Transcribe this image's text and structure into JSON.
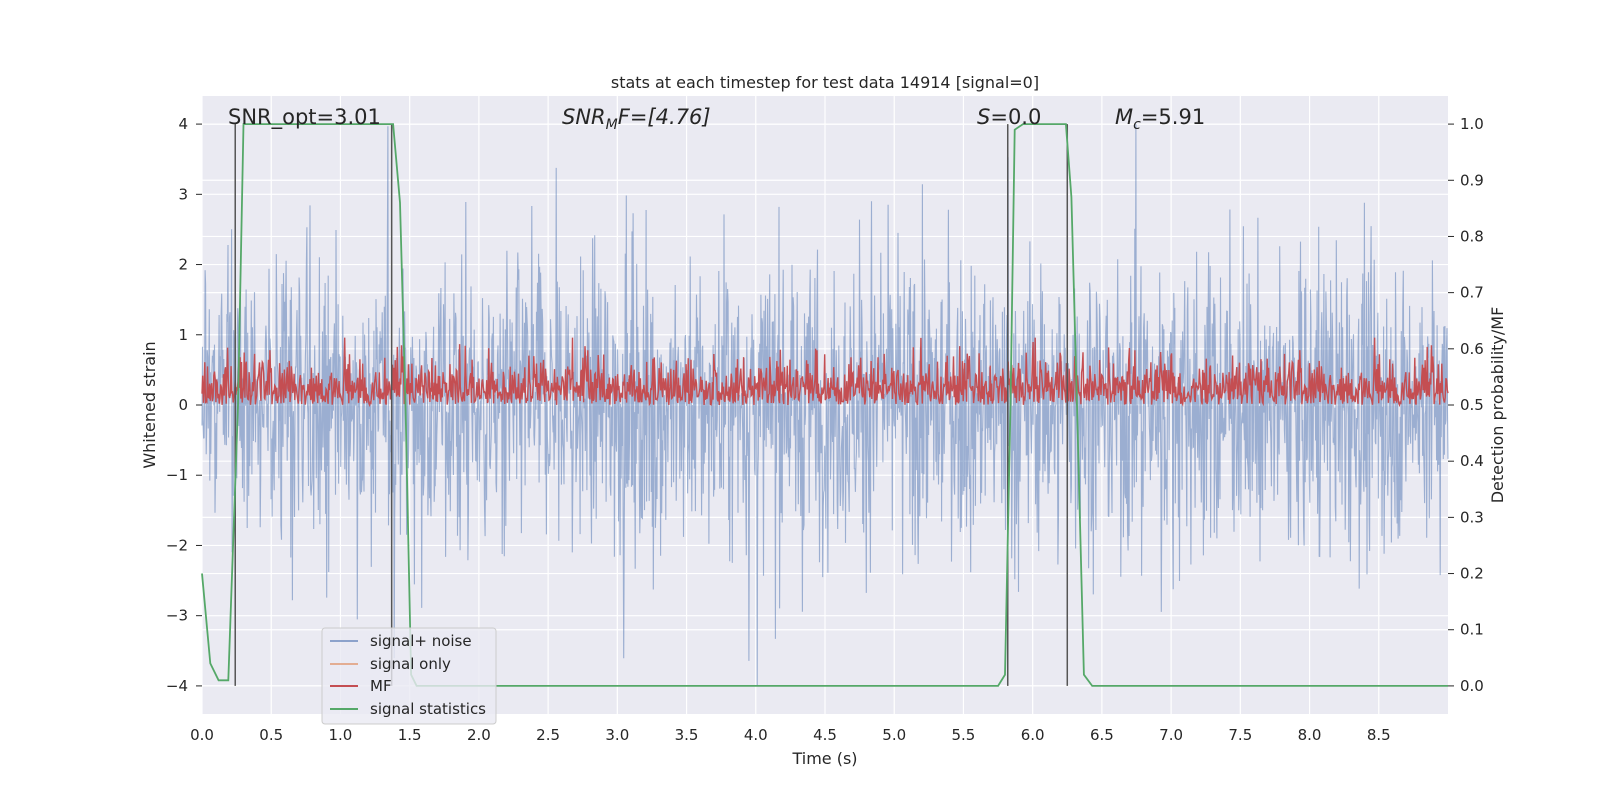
{
  "chart_data": {
    "type": "line",
    "title": "stats at each timestep for test data 14914 [signal=0]",
    "xlabel": "Time (s)",
    "ylabel": "Whitened strain",
    "y2label": "Detection probability/MF",
    "xlim": [
      0.0,
      9.0
    ],
    "ylim": [
      -4.4,
      4.4
    ],
    "y2lim": [
      -0.05,
      1.05
    ],
    "x_ticks": [
      "0.0",
      "0.5",
      "1.0",
      "1.5",
      "2.0",
      "2.5",
      "3.0",
      "3.5",
      "4.0",
      "4.5",
      "5.0",
      "5.5",
      "6.0",
      "6.5",
      "7.0",
      "7.5",
      "8.0",
      "8.5"
    ],
    "y_ticks": [
      "−4",
      "−3",
      "−2",
      "−1",
      "0",
      "1",
      "2",
      "3",
      "4"
    ],
    "y2_ticks": [
      "0.0",
      "0.1",
      "0.2",
      "0.3",
      "0.4",
      "0.5",
      "0.6",
      "0.7",
      "0.8",
      "0.9",
      "1.0"
    ],
    "grid": true,
    "legend_position": "lower-left",
    "annotations": {
      "snr_opt": "SNR_opt=3.01",
      "snr_mf_sym": "SNR",
      "snr_mf_sub": "M",
      "snr_mf_rest": "F=[4.76]",
      "s_sym": "S",
      "s_rest": "=0.0",
      "mc_sym": "M",
      "mc_sub": "c",
      "mc_rest": "=5.91"
    },
    "series": [
      {
        "name": "signal+ noise",
        "color": "#4c72b0",
        "alpha": 0.5,
        "axis": "left",
        "noise_envelope": [
          -4.0,
          4.0
        ]
      },
      {
        "name": "signal only",
        "color": "#dd8452",
        "alpha": 0.5,
        "axis": "left",
        "values": "none visible"
      },
      {
        "name": "MF",
        "color": "#c44e52",
        "axis": "right",
        "range": [
          0.5,
          0.62
        ]
      },
      {
        "name": "signal statistics",
        "color": "#55a868",
        "axis": "right",
        "points": [
          [
            0.0,
            0.2
          ],
          [
            0.06,
            0.04
          ],
          [
            0.12,
            0.01
          ],
          [
            0.19,
            0.01
          ],
          [
            0.26,
            0.5
          ],
          [
            0.3,
            1.0
          ],
          [
            0.35,
            1.0
          ],
          [
            1.36,
            1.0
          ],
          [
            1.38,
            1.0
          ],
          [
            1.43,
            0.86
          ],
          [
            1.47,
            0.5
          ],
          [
            1.51,
            0.02
          ],
          [
            1.55,
            0.0
          ],
          [
            5.75,
            0.0
          ],
          [
            5.8,
            0.02
          ],
          [
            5.84,
            0.5
          ],
          [
            5.87,
            0.99
          ],
          [
            5.93,
            1.0
          ],
          [
            6.24,
            1.0
          ],
          [
            6.28,
            0.87
          ],
          [
            6.32,
            0.5
          ],
          [
            6.37,
            0.02
          ],
          [
            6.43,
            0.0
          ],
          [
            9.0,
            0.0
          ]
        ]
      }
    ],
    "vlines": [
      0.24,
      1.37,
      5.82,
      6.25
    ]
  }
}
